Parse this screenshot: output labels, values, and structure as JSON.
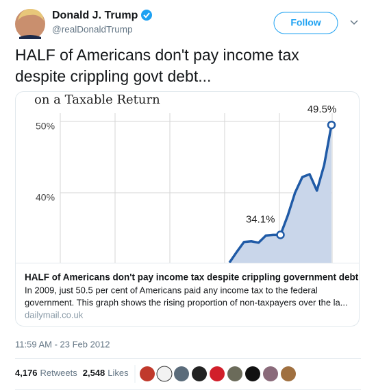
{
  "header": {
    "name": "Donald J. Trump",
    "handle": "@realDonaldTrump",
    "follow": "Follow"
  },
  "tweet": {
    "text": [
      "HALF of Americans don't pay income tax",
      "despite crippling govt debt..."
    ]
  },
  "card": {
    "chart_data": {
      "type": "line",
      "title": "on a Taxable Return",
      "categories": [
        null,
        null,
        null,
        null,
        null,
        null,
        null,
        null,
        null,
        null,
        null,
        null,
        null,
        null,
        null
      ],
      "values": [
        30.2,
        31.7,
        33.1,
        33.2,
        33.0,
        34.0,
        34.1,
        34.1,
        36.8,
        40.0,
        42.2,
        42.6,
        40.3,
        43.9,
        49.5
      ],
      "value_labels": [
        null,
        null,
        null,
        null,
        null,
        null,
        null,
        "34.1%",
        null,
        null,
        null,
        null,
        null,
        null,
        "49.5%"
      ],
      "color": "#1f5aa6",
      "ylim": [
        30,
        54
      ],
      "yticks": [
        {
          "value": 40,
          "label": "40%"
        },
        {
          "value": 50,
          "label": "50%"
        }
      ],
      "grid": true
    },
    "title": "HALF of Americans don't pay income tax despite crippling government debt",
    "description": [
      "In 2009, just 50.5 per cent of Americans paid any income tax to the federal",
      "government. This graph shows the rising proportion of non-taxpayers over the la..."
    ],
    "domain": "dailymail.co.uk"
  },
  "footer": {
    "timestamp": "11:59 AM - 23 Feb 2012",
    "retweets": "4,176",
    "retweets_label": "Retweets",
    "likes": "2,548",
    "likes_label": "Likes"
  }
}
